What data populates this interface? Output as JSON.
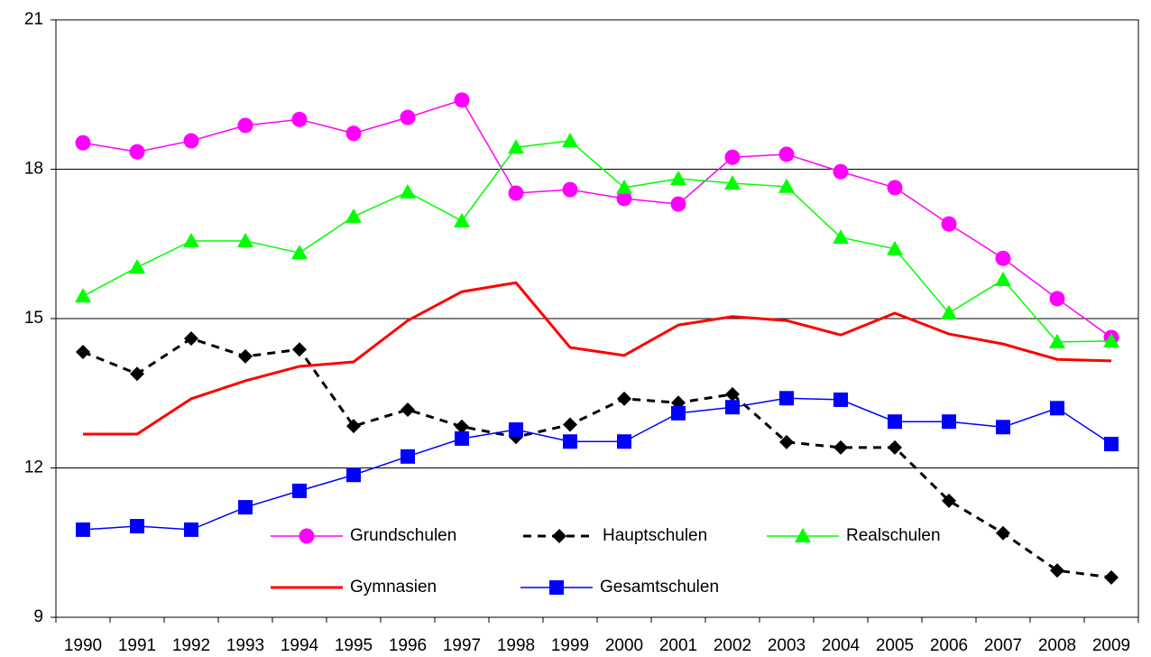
{
  "chart_data": {
    "type": "line",
    "categories": [
      "1990",
      "1991",
      "1992",
      "1993",
      "1994",
      "1995",
      "1996",
      "1997",
      "1998",
      "1999",
      "2000",
      "2001",
      "2002",
      "2003",
      "2004",
      "2005",
      "2006",
      "2007",
      "2008",
      "2009"
    ],
    "ylim": [
      9,
      21
    ],
    "yticks": [
      9,
      12,
      15,
      18,
      21
    ],
    "grid": true,
    "legend": "bottom",
    "series": [
      {
        "name": "Grundschulen",
        "color": "#ff00ff",
        "marker": "circle",
        "dash": false,
        "values": [
          18.53,
          18.35,
          18.57,
          18.88,
          19.0,
          18.72,
          19.04,
          19.39,
          17.52,
          17.59,
          17.41,
          17.3,
          18.24,
          18.3,
          17.95,
          17.63,
          16.9,
          16.21,
          15.4,
          14.62
        ]
      },
      {
        "name": "Hauptschulen",
        "color": "#000000",
        "marker": "diamond",
        "dash": true,
        "values": [
          14.33,
          13.89,
          14.6,
          14.24,
          14.38,
          12.84,
          13.17,
          12.83,
          12.62,
          12.87,
          13.39,
          13.31,
          13.48,
          12.52,
          12.41,
          12.41,
          11.34,
          10.69,
          9.94,
          9.8
        ]
      },
      {
        "name": "Realschulen",
        "color": "#00ff00",
        "marker": "triangle",
        "dash": false,
        "values": [
          15.45,
          16.03,
          16.56,
          16.56,
          16.32,
          17.05,
          17.54,
          16.96,
          18.44,
          18.57,
          17.63,
          17.81,
          17.72,
          17.65,
          16.63,
          16.4,
          15.11,
          15.78,
          14.53,
          14.55
        ]
      },
      {
        "name": "Gymnasien",
        "color": "#ff0000",
        "marker": "none",
        "dash": false,
        "values": [
          12.68,
          12.68,
          13.39,
          13.75,
          14.04,
          14.13,
          14.96,
          15.54,
          15.72,
          14.42,
          14.26,
          14.87,
          15.04,
          14.96,
          14.67,
          15.11,
          14.69,
          14.49,
          14.18,
          14.15
        ]
      },
      {
        "name": "Gesamtschulen",
        "color": "#0000ff",
        "marker": "square",
        "dash": false,
        "values": [
          10.76,
          10.83,
          10.76,
          11.21,
          11.54,
          11.86,
          12.23,
          12.59,
          12.77,
          12.53,
          12.53,
          13.1,
          13.22,
          13.4,
          13.37,
          12.93,
          12.93,
          12.82,
          13.2,
          12.48
        ]
      }
    ]
  }
}
